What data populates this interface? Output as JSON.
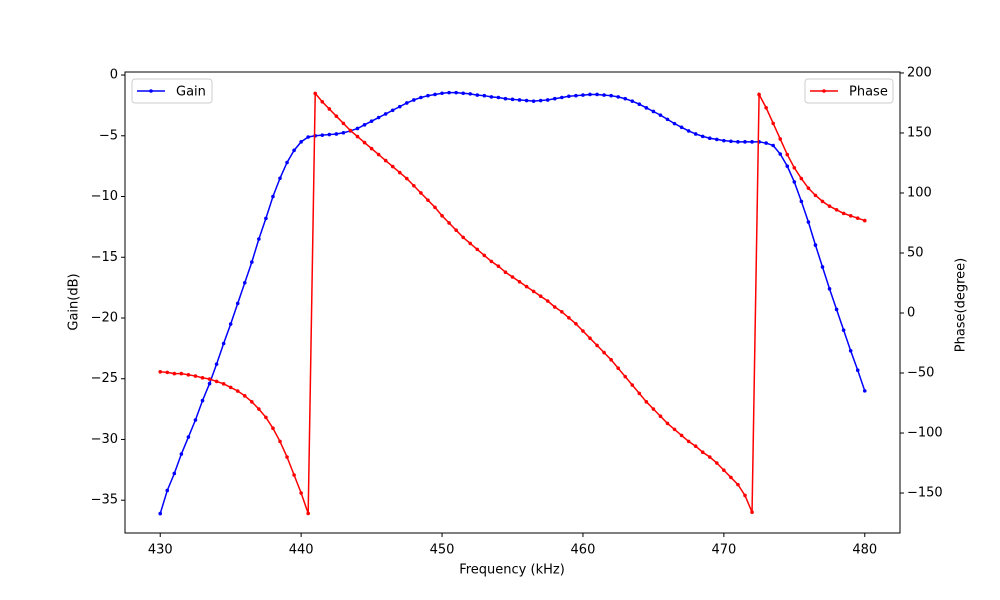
{
  "chart_data": {
    "type": "line",
    "xlabel": "Frequency (kHz)",
    "ylabel": "Gain(dB)",
    "y2label": "Phase(degree)",
    "x": [
      430,
      430.5,
      431,
      431.5,
      432,
      432.5,
      433,
      433.5,
      434,
      434.5,
      435,
      435.5,
      436,
      436.5,
      437,
      437.5,
      438,
      438.5,
      439,
      439.5,
      440,
      440.5,
      441,
      441.5,
      442,
      442.5,
      443,
      443.5,
      444,
      444.5,
      445,
      445.5,
      446,
      446.5,
      447,
      447.5,
      448,
      448.5,
      449,
      449.5,
      450,
      450.5,
      451,
      451.5,
      452,
      452.5,
      453,
      453.5,
      454,
      454.5,
      455,
      455.5,
      456,
      456.5,
      457,
      457.5,
      458,
      458.5,
      459,
      459.5,
      460,
      460.5,
      461,
      461.5,
      462,
      462.5,
      463,
      463.5,
      464,
      464.5,
      465,
      465.5,
      466,
      466.5,
      467,
      467.5,
      468,
      468.5,
      469,
      469.5,
      470,
      470.5,
      471,
      471.5,
      472,
      472.5,
      473,
      473.5,
      474,
      474.5,
      475,
      475.5,
      476,
      476.5,
      477,
      477.5,
      478,
      478.5,
      479,
      479.5,
      480
    ],
    "series": [
      {
        "name": "Gain",
        "color": "#0000ff",
        "axis": "y",
        "legend": "upper left",
        "values": [
          -36.1,
          -34.2,
          -32.8,
          -31.2,
          -29.8,
          -28.4,
          -26.8,
          -25.4,
          -23.8,
          -22.1,
          -20.5,
          -18.8,
          -17.1,
          -15.4,
          -13.5,
          -11.8,
          -10.0,
          -8.5,
          -7.2,
          -6.2,
          -5.5,
          -5.1,
          -5.0,
          -4.95,
          -4.9,
          -4.85,
          -4.75,
          -4.6,
          -4.4,
          -4.1,
          -3.8,
          -3.5,
          -3.2,
          -2.9,
          -2.6,
          -2.3,
          -2.05,
          -1.85,
          -1.7,
          -1.6,
          -1.5,
          -1.45,
          -1.45,
          -1.5,
          -1.55,
          -1.65,
          -1.7,
          -1.8,
          -1.85,
          -1.95,
          -2.0,
          -2.05,
          -2.1,
          -2.15,
          -2.1,
          -2.05,
          -1.95,
          -1.85,
          -1.75,
          -1.7,
          -1.65,
          -1.6,
          -1.6,
          -1.65,
          -1.7,
          -1.8,
          -1.95,
          -2.15,
          -2.4,
          -2.7,
          -3.0,
          -3.3,
          -3.65,
          -4.0,
          -4.3,
          -4.6,
          -4.85,
          -5.05,
          -5.2,
          -5.3,
          -5.4,
          -5.45,
          -5.5,
          -5.5,
          -5.5,
          -5.5,
          -5.6,
          -5.8,
          -6.5,
          -7.5,
          -8.8,
          -10.4,
          -12.1,
          -14.0,
          -15.8,
          -17.6,
          -19.3,
          -21.0,
          -22.7,
          -24.3,
          -26.0
        ]
      },
      {
        "name": "Phase",
        "color": "#ff0000",
        "axis": "y2",
        "legend": "upper right",
        "values": [
          -49,
          -49.5,
          -50.5,
          -50.5,
          -51.5,
          -52.5,
          -54,
          -55,
          -57,
          -59,
          -62,
          -65,
          -69,
          -74,
          -80,
          -87,
          -96,
          -107,
          -120,
          -135,
          -150,
          -167,
          183,
          176,
          170,
          164,
          158,
          152,
          147,
          142,
          137,
          132,
          127,
          122,
          117,
          112,
          106,
          100,
          94,
          88,
          81,
          75,
          69,
          63,
          58,
          53,
          48,
          43,
          39,
          34,
          30,
          26,
          22,
          18,
          14,
          10,
          5,
          1,
          -4,
          -9,
          -15,
          -21,
          -27,
          -33,
          -39,
          -46,
          -53,
          -60,
          -67,
          -74,
          -80,
          -86,
          -92,
          -97,
          -102,
          -107,
          -111,
          -116,
          -120,
          -125,
          -131,
          -137,
          -143,
          -152,
          -166,
          182,
          171,
          158,
          145,
          132,
          121,
          112,
          104,
          98,
          93,
          89,
          86,
          83,
          81,
          79,
          77
        ]
      }
    ],
    "xlim": [
      427.5,
      482.5
    ],
    "xticks": [
      430,
      440,
      450,
      460,
      470,
      480
    ],
    "ylim": [
      -37.7,
      0.25
    ],
    "yticks": [
      {
        "value": -35,
        "label": "−35"
      },
      {
        "value": -30,
        "label": "−30"
      },
      {
        "value": -25,
        "label": "−25"
      },
      {
        "value": -20,
        "label": "−20"
      },
      {
        "value": -15,
        "label": "−15"
      },
      {
        "value": -10,
        "label": "−10"
      },
      {
        "value": -5,
        "label": "−5"
      },
      0
    ],
    "y2lim": [
      -183.3,
      200.8
    ],
    "y2ticks": [
      {
        "value": -150,
        "label": "−150"
      },
      {
        "value": -100,
        "label": "−100"
      },
      {
        "value": -50,
        "label": "−50"
      },
      0,
      50,
      100,
      150,
      200
    ]
  }
}
